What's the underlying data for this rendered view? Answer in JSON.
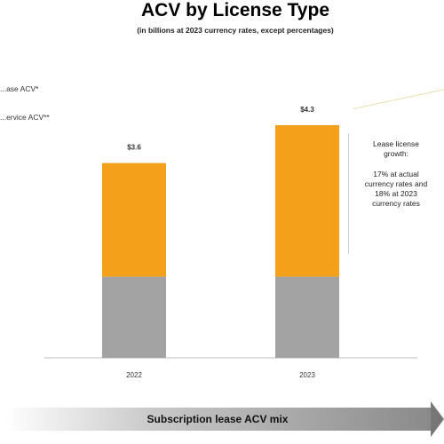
{
  "title": "ACV by License Type",
  "subtitle": "(in billions at 2023 currency rates, except percentages)",
  "legend": [
    "...ase ACV*",
    "...ervice ACV**"
  ],
  "annotation": {
    "line1": "Lease license",
    "line2": "growth:",
    "line3": "17% at actual",
    "line4": "currency rates and",
    "line5": "18% at 2023",
    "line6": "currency rates"
  },
  "bottom_label": "Subscription lease ACV mix",
  "colors": {
    "lease": "#f5a01a",
    "service": "#a3a3a3"
  },
  "chart_data": {
    "type": "bar",
    "stacked": true,
    "categories": [
      "2022",
      "2023"
    ],
    "totals": [
      "$3.6",
      "$4.3"
    ],
    "series": [
      {
        "name": "...ervice ACV**",
        "values": [
          1.5,
          1.5
        ]
      },
      {
        "name": "...ase ACV*",
        "values": [
          2.1,
          2.8
        ]
      }
    ],
    "ylim": [
      0,
      5.3
    ]
  }
}
